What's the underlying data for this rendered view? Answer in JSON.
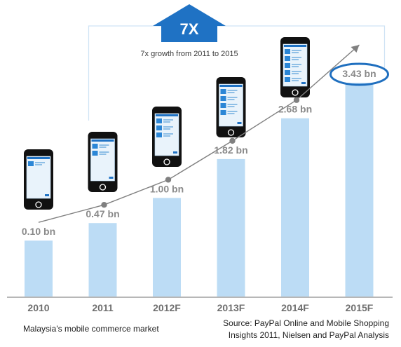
{
  "headline": {
    "badge": "7X",
    "caption": "7x growth from 2011 to 2015"
  },
  "chart_data": {
    "type": "bar",
    "categories": [
      "2010",
      "2011",
      "2012F",
      "2013F",
      "2014F",
      "2015F"
    ],
    "values": [
      0.1,
      0.47,
      1.0,
      1.82,
      2.68,
      3.43
    ],
    "value_labels": [
      "0.10 bn",
      "0.47 bn",
      "1.00 bn",
      "1.82 bn",
      "2.68 bn",
      "3.43 bn"
    ],
    "highlighted_index": 5,
    "trend_line": true,
    "ylim": [
      0,
      3.43
    ],
    "title": "",
    "xlabel": "",
    "ylabel": "",
    "grid": false,
    "colors": {
      "bar": "#bcdcf5",
      "bar_label": "#8a8a8a",
      "highlight_ring": "#1f6fbf",
      "trend": "#808080",
      "accent": "#1f72c4",
      "baseline": "#6f6f6f"
    },
    "icons": [
      "smartphone-icon"
    ]
  },
  "footer": {
    "left": "Malaysia's mobile commerce market",
    "right_line1": "Source: PayPal Online and Mobile Shopping",
    "right_line2": "Insights 2011, Nielsen and PayPal Analysis"
  }
}
